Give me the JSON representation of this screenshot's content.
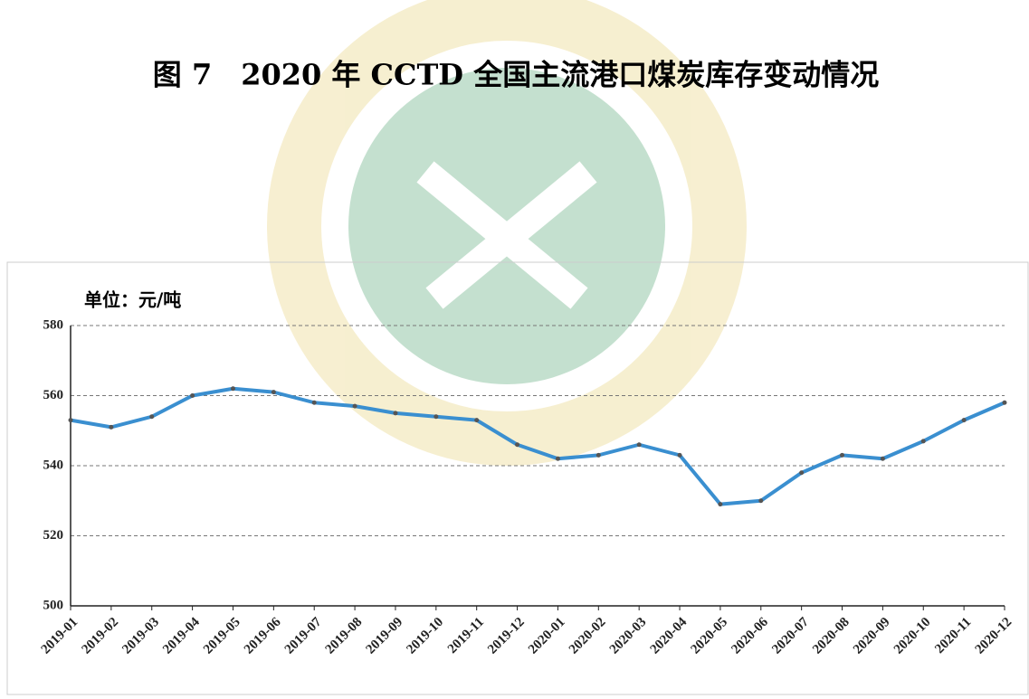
{
  "chart_data": {
    "type": "line",
    "title": "图 7　2020 年 CCTD 全国主流港口煤炭库存变动情况",
    "unit_label": "单位：元/吨",
    "categories": [
      "2019-01",
      "2019-02",
      "2019-03",
      "2019-04",
      "2019-05",
      "2019-06",
      "2019-07",
      "2019-08",
      "2019-09",
      "2019-10",
      "2019-11",
      "2019-12",
      "2020-01",
      "2020-02",
      "2020-03",
      "2020-04",
      "2020-05",
      "2020-06",
      "2020-07",
      "2020-08",
      "2020-09",
      "2020-10",
      "2020-11",
      "2020-12"
    ],
    "series": [
      {
        "name": "库存",
        "color": "#3a8fd0",
        "values": [
          553,
          551,
          554,
          560,
          562,
          561,
          558,
          557,
          555,
          554,
          553,
          546,
          542,
          543,
          546,
          543,
          529,
          530,
          538,
          543,
          542,
          547,
          553,
          558
        ]
      }
    ],
    "ylim": [
      500,
      580
    ],
    "yticks": [
      500,
      520,
      540,
      560,
      580
    ],
    "grid": true
  }
}
